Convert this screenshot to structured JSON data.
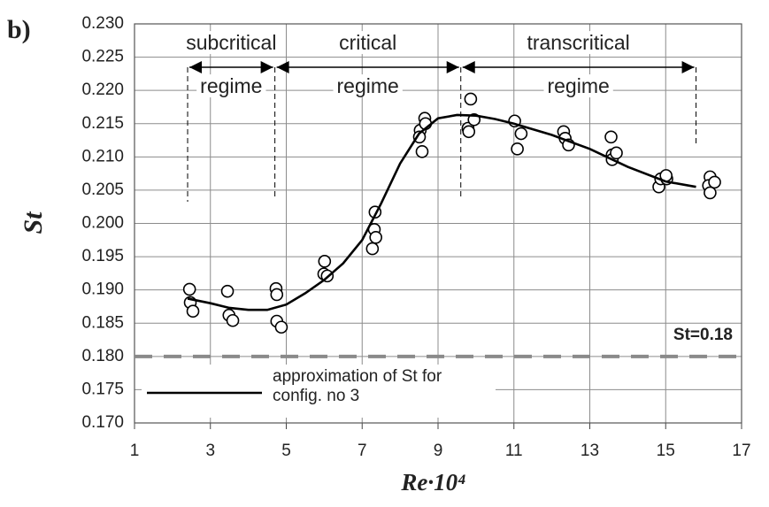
{
  "chart_data": {
    "type": "scatter",
    "panel_label": "b)",
    "xlabel": "Re·10⁴",
    "ylabel": "St",
    "xlim": [
      1,
      17
    ],
    "ylim": [
      0.17,
      0.23
    ],
    "xticks": [
      1,
      3,
      5,
      7,
      9,
      11,
      13,
      15,
      17
    ],
    "yticks": [
      {
        "value": 0.17,
        "label": "0.170"
      },
      0.175,
      {
        "value": 0.18,
        "label": "0.180"
      },
      0.185,
      {
        "value": 0.19,
        "label": "0.190"
      },
      0.195,
      {
        "value": 0.2,
        "label": "0.200"
      },
      0.205,
      {
        "value": 0.21,
        "label": "0.210"
      },
      0.215,
      {
        "value": 0.22,
        "label": "0.220"
      },
      0.225,
      {
        "value": 0.23,
        "label": "0.230"
      }
    ],
    "grid": true,
    "reference_line": {
      "value": 0.18,
      "label": "St=0.18",
      "color": "#8a8a8a"
    },
    "regimes": [
      {
        "name": "subcritical",
        "label": "regime",
        "from": 2.4,
        "to": 4.7
      },
      {
        "name": "critical",
        "label": "regime",
        "from": 4.7,
        "to": 9.6
      },
      {
        "name": "transcritical",
        "label": "regime",
        "from": 9.6,
        "to": 15.8
      }
    ],
    "series": [
      {
        "type": "scatter",
        "color": "#000000",
        "x": [
          2.45,
          2.47,
          2.54,
          3.45,
          3.49,
          3.59,
          4.73,
          4.75,
          4.75,
          4.87,
          6.01,
          5.99,
          6.08,
          7.34,
          7.32,
          7.36,
          7.27,
          8.53,
          8.51,
          8.58,
          8.65,
          8.67,
          9.86,
          9.79,
          9.81,
          9.95,
          11.02,
          11.19,
          11.09,
          12.31,
          12.35,
          12.44,
          13.56,
          13.59,
          13.59,
          13.7,
          14.82,
          14.87,
          15.03,
          15.01,
          16.17,
          16.13,
          16.17,
          16.29
        ],
        "y": [
          0.1901,
          0.1881,
          0.1868,
          0.1898,
          0.1862,
          0.1854,
          0.1902,
          0.1893,
          0.1853,
          0.1844,
          0.1943,
          0.1924,
          0.1921,
          0.2017,
          0.1991,
          0.1979,
          0.1962,
          0.214,
          0.213,
          0.2108,
          0.2158,
          0.215,
          0.2187,
          0.2143,
          0.2138,
          0.2156,
          0.2154,
          0.2135,
          0.2112,
          0.2138,
          0.2128,
          0.2118,
          0.213,
          0.2103,
          0.2096,
          0.2106,
          0.2055,
          0.2067,
          0.2067,
          0.2072,
          0.207,
          0.2057,
          0.2046,
          0.2062
        ]
      },
      {
        "type": "line",
        "name": "approximation of St for config. no 3",
        "color": "#000000",
        "x": [
          2.4,
          3,
          3.5,
          4,
          4.5,
          5,
          5.5,
          6,
          6.5,
          7,
          7.5,
          8,
          8.5,
          9,
          9.5,
          10,
          10.5,
          11,
          12,
          13,
          14,
          15,
          15.8
        ],
        "y": [
          0.1887,
          0.188,
          0.1873,
          0.187,
          0.187,
          0.1878,
          0.1895,
          0.1915,
          0.194,
          0.1975,
          0.203,
          0.209,
          0.2135,
          0.2158,
          0.2163,
          0.2162,
          0.2157,
          0.215,
          0.2133,
          0.2112,
          0.2085,
          0.2063,
          0.2055
        ]
      }
    ]
  }
}
